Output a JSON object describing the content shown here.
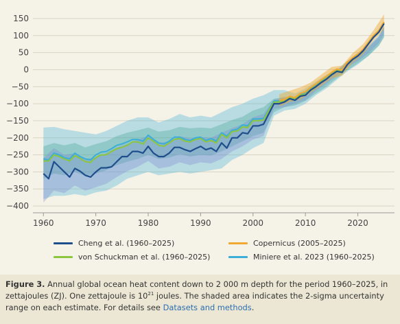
{
  "chart_data": {
    "type": "line",
    "xlim": [
      1958,
      2027
    ],
    "ylim": [
      -420,
      160
    ],
    "x_ticks": [
      "1960",
      "1970",
      "1980",
      "1990",
      "2000",
      "2010",
      "2020"
    ],
    "y_ticks": [
      "150",
      "100",
      "50",
      "0",
      "−50",
      "−100",
      "−150",
      "−200",
      "−250",
      "−300",
      "−350",
      "−400"
    ],
    "grid": "horizontal",
    "colors": {
      "cheng": "#1f4e8c",
      "schuckman": "#8cc63f",
      "copernicus": "#f0a830",
      "miniere": "#3aaed8"
    },
    "series": [
      {
        "name": "Cheng et al. (1960–2025)",
        "color": "#1f4e8c",
        "x": [
          1960,
          1961,
          1962,
          1963,
          1964,
          1965,
          1966,
          1967,
          1968,
          1969,
          1970,
          1971,
          1972,
          1973,
          1974,
          1975,
          1976,
          1977,
          1978,
          1979,
          1980,
          1981,
          1982,
          1983,
          1984,
          1985,
          1986,
          1987,
          1988,
          1989,
          1990,
          1991,
          1992,
          1993,
          1994,
          1995,
          1996,
          1997,
          1998,
          1999,
          2000,
          2001,
          2002,
          2003,
          2004,
          2005,
          2006,
          2007,
          2008,
          2009,
          2010,
          2011,
          2012,
          2013,
          2014,
          2015,
          2016,
          2017,
          2018,
          2019,
          2020,
          2021,
          2022,
          2023,
          2024,
          2025
        ],
        "y": [
          -305,
          -320,
          -270,
          -285,
          -300,
          -315,
          -290,
          -298,
          -310,
          -315,
          -300,
          -288,
          -288,
          -285,
          -270,
          -255,
          -255,
          -240,
          -240,
          -245,
          -225,
          -245,
          -255,
          -255,
          -245,
          -228,
          -228,
          -235,
          -240,
          -232,
          -225,
          -235,
          -230,
          -240,
          -215,
          -230,
          -200,
          -200,
          -185,
          -188,
          -165,
          -165,
          -160,
          -130,
          -100,
          -100,
          -95,
          -85,
          -90,
          -78,
          -75,
          -60,
          -50,
          -38,
          -28,
          -15,
          -5,
          -8,
          15,
          30,
          40,
          55,
          75,
          95,
          110,
          135
        ]
      },
      {
        "name": "von Schuckman et al. (1960–2025)",
        "color": "#8cc63f",
        "x": [
          1960,
          1961,
          1962,
          1963,
          1964,
          1965,
          1966,
          1967,
          1968,
          1969,
          1970,
          1971,
          1972,
          1973,
          1974,
          1975,
          1976,
          1977,
          1978,
          1979,
          1980,
          1981,
          1982,
          1983,
          1984,
          1985,
          1986,
          1987,
          1988,
          1989,
          1990,
          1991,
          1992,
          1993,
          1994,
          1995,
          1996,
          1997,
          1998,
          1999,
          2000,
          2001,
          2002,
          2003,
          2004,
          2005,
          2006,
          2007,
          2008,
          2009,
          2010,
          2011,
          2012,
          2013,
          2014,
          2015,
          2016,
          2017,
          2018,
          2019,
          2020,
          2021,
          2022,
          2023,
          2024,
          2025
        ],
        "y": [
          -268,
          -268,
          -250,
          -255,
          -262,
          -268,
          -252,
          -260,
          -270,
          -272,
          -258,
          -250,
          -250,
          -240,
          -232,
          -228,
          -222,
          -212,
          -212,
          -218,
          -200,
          -210,
          -222,
          -225,
          -215,
          -205,
          -202,
          -210,
          -212,
          -205,
          -202,
          -212,
          -208,
          -215,
          -190,
          -200,
          -182,
          -180,
          -168,
          -170,
          -150,
          -150,
          -148,
          -120,
          -95,
          -95,
          -90,
          -82,
          -85,
          -75,
          -72,
          -58,
          -48,
          -36,
          -26,
          -13,
          -3,
          -6,
          17,
          32,
          42,
          57,
          77,
          97,
          112,
          137
        ]
      },
      {
        "name": "Copernicus (2005–2025)",
        "color": "#f0a830",
        "x": [
          2005,
          2006,
          2007,
          2008,
          2009,
          2010,
          2011,
          2012,
          2013,
          2014,
          2015,
          2016,
          2017,
          2018,
          2019,
          2020,
          2021,
          2022,
          2023,
          2024,
          2025
        ],
        "y": [
          -90,
          -88,
          -78,
          -82,
          -70,
          -65,
          -52,
          -42,
          -30,
          -20,
          -8,
          2,
          -2,
          22,
          35,
          45,
          60,
          80,
          100,
          115,
          140
        ]
      },
      {
        "name": "Miniere et al. 2023 (1960–2025)",
        "color": "#3aaed8",
        "x": [
          1960,
          1961,
          1962,
          1963,
          1964,
          1965,
          1966,
          1967,
          1968,
          1969,
          1970,
          1971,
          1972,
          1973,
          1974,
          1975,
          1976,
          1977,
          1978,
          1979,
          1980,
          1981,
          1982,
          1983,
          1984,
          1985,
          1986,
          1987,
          1988,
          1989,
          1990,
          1991,
          1992,
          1993,
          1994,
          1995,
          1996,
          1997,
          1998,
          1999,
          2000,
          2001,
          2002,
          2003,
          2004,
          2005,
          2006,
          2007,
          2008,
          2009,
          2010,
          2011,
          2012,
          2013,
          2014,
          2015,
          2016,
          2017,
          2018,
          2019,
          2020,
          2021,
          2022,
          2023,
          2024,
          2025
        ],
        "y": [
          -262,
          -265,
          -245,
          -250,
          -258,
          -262,
          -245,
          -255,
          -262,
          -265,
          -250,
          -242,
          -240,
          -232,
          -222,
          -218,
          -212,
          -205,
          -205,
          -210,
          -192,
          -205,
          -215,
          -218,
          -210,
          -198,
          -198,
          -205,
          -208,
          -200,
          -198,
          -208,
          -202,
          -210,
          -185,
          -195,
          -178,
          -175,
          -162,
          -165,
          -145,
          -145,
          -143,
          -118,
          -92,
          -92,
          -88,
          -80,
          -83,
          -72,
          -70,
          -56,
          -46,
          -34,
          -24,
          -11,
          -1,
          -4,
          19,
          34,
          44,
          59,
          79,
          99,
          114,
          138
        ]
      }
    ],
    "bands": [
      {
        "color": "#3aaed8",
        "opacity": 0.32,
        "x": [
          1960,
          1962,
          1964,
          1966,
          1968,
          1970,
          1972,
          1974,
          1976,
          1978,
          1980,
          1982,
          1984,
          1986,
          1988,
          1990,
          1992,
          1994,
          1996,
          1998,
          2000,
          2002,
          2004,
          2006,
          2008,
          2010,
          2012,
          2014,
          2016,
          2018,
          2020,
          2022,
          2024,
          2025
        ],
        "upper": [
          -170,
          -168,
          -175,
          -180,
          -185,
          -190,
          -180,
          -165,
          -150,
          -140,
          -140,
          -155,
          -145,
          -130,
          -140,
          -135,
          -140,
          -125,
          -110,
          -100,
          -85,
          -75,
          -60,
          -60,
          -70,
          -55,
          -35,
          -15,
          0,
          25,
          50,
          70,
          100,
          130
        ],
        "lower": [
          -380,
          -370,
          -370,
          -365,
          -370,
          -360,
          -355,
          -340,
          -320,
          -310,
          -300,
          -310,
          -305,
          -300,
          -305,
          -300,
          -295,
          -290,
          -265,
          -250,
          -230,
          -215,
          -135,
          -120,
          -115,
          -100,
          -75,
          -55,
          -30,
          -5,
          15,
          40,
          70,
          95
        ]
      },
      {
        "color": "#2a9b8a",
        "opacity": 0.28,
        "x": [
          1960,
          1962,
          1964,
          1966,
          1968,
          1970,
          1972,
          1974,
          1976,
          1978,
          1980,
          1982,
          1984,
          1986,
          1988,
          1990,
          1992,
          1994,
          1996,
          1998,
          2000,
          2002,
          2004,
          2006,
          2008,
          2010,
          2012,
          2014,
          2016,
          2018,
          2020,
          2022,
          2024,
          2025
        ],
        "upper": [
          -225,
          -215,
          -222,
          -215,
          -228,
          -218,
          -210,
          -195,
          -185,
          -178,
          -170,
          -182,
          -178,
          -168,
          -172,
          -170,
          -172,
          -160,
          -148,
          -138,
          -120,
          -110,
          -85,
          -80,
          -80,
          -62,
          -42,
          -20,
          -5,
          22,
          42,
          65,
          95,
          125
        ],
        "lower": [
          -320,
          -305,
          -310,
          -300,
          -312,
          -305,
          -295,
          -280,
          -270,
          -262,
          -250,
          -262,
          -258,
          -248,
          -255,
          -250,
          -252,
          -240,
          -225,
          -210,
          -195,
          -185,
          -125,
          -110,
          -105,
          -92,
          -70,
          -50,
          -25,
          -2,
          18,
          40,
          70,
          95
        ]
      },
      {
        "color": "#7b7fd1",
        "opacity": 0.3,
        "x": [
          1960,
          1962,
          1964,
          1966,
          1968,
          1970,
          1972,
          1974,
          1976,
          1978,
          1980,
          1982,
          1984,
          1986,
          1988,
          1990,
          1992,
          1994,
          1996,
          1998,
          2000,
          2002,
          2004,
          2006,
          2008,
          2010,
          2012,
          2014,
          2016,
          2018,
          2020,
          2022,
          2024,
          2025
        ],
        "upper": [
          -260,
          -230,
          -250,
          -245,
          -262,
          -258,
          -245,
          -228,
          -218,
          -205,
          -195,
          -215,
          -210,
          -195,
          -202,
          -198,
          -200,
          -185,
          -172,
          -160,
          -140,
          -130,
          -88,
          -82,
          -80,
          -62,
          -40,
          -18,
          -2,
          25,
          45,
          68,
          98,
          128
        ],
        "lower": [
          -390,
          -355,
          -362,
          -340,
          -355,
          -345,
          -335,
          -315,
          -298,
          -285,
          -268,
          -290,
          -285,
          -272,
          -280,
          -272,
          -275,
          -262,
          -240,
          -225,
          -205,
          -195,
          -115,
          -110,
          -100,
          -90,
          -62,
          -42,
          -18,
          8,
          25,
          48,
          78,
          105
        ]
      },
      {
        "color": "#f0a830",
        "opacity": 0.45,
        "x": [
          2005,
          2007,
          2009,
          2011,
          2013,
          2015,
          2017,
          2019,
          2021,
          2023,
          2025
        ],
        "upper": [
          -72,
          -62,
          -52,
          -38,
          -15,
          8,
          12,
          48,
          75,
          115,
          162
        ],
        "lower": [
          -108,
          -95,
          -88,
          -68,
          -48,
          -25,
          -18,
          20,
          45,
          85,
          118
        ]
      }
    ]
  },
  "legend": {
    "cheng": "Cheng et al. (1960–2025)",
    "copernicus": "Copernicus (2005–2025)",
    "schuckman": "von Schuckman et al. (1960–2025)",
    "miniere": "Miniere et al. 2023 (1960–2025)"
  },
  "caption": {
    "label": "Figure 3.",
    "text1": " Annual global ocean heat content down to 2 000 m depth for the period 1960–2025, in zettajoules (ZJ). One zettajoule is 10",
    "sup": "21",
    "text2": " joules. The shaded area indicates the 2-sigma uncertainty range on each estimate. For details see ",
    "link": "Datasets and methods",
    "end": "."
  }
}
